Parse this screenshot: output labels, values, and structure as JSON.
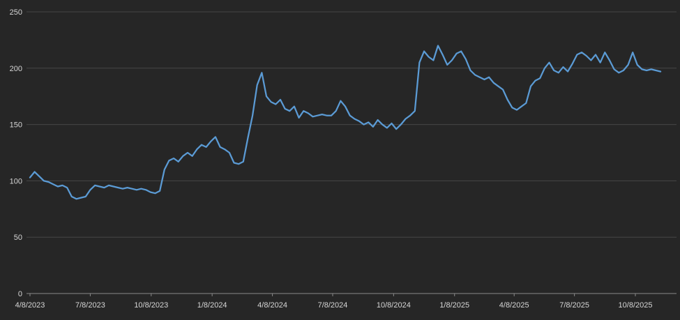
{
  "chart_data": {
    "type": "line",
    "title": "",
    "xlabel": "",
    "ylabel": "",
    "legend": "none",
    "grid": "horizontal",
    "ylim": [
      0,
      250
    ],
    "y_ticks": [
      0,
      50,
      100,
      150,
      200,
      250
    ],
    "x_tick_labels": [
      "4/8/2023",
      "7/8/2023",
      "10/8/2023",
      "1/8/2024",
      "4/8/2024",
      "7/8/2024",
      "10/8/2024",
      "1/8/2025",
      "4/8/2025",
      "7/8/2025",
      "10/8/2025"
    ],
    "colors": {
      "background": "#262626",
      "gridline": "#474747",
      "axis_line": "#8a8a8a",
      "tick_text": "#d6d6d6",
      "line": "#5b9bd5"
    },
    "series": [
      {
        "name": "price",
        "color": "#5b9bd5",
        "start_date": "2023-04-08",
        "interval_days": 7,
        "values": [
          103,
          108,
          104,
          100,
          99,
          97,
          95,
          96,
          94,
          86,
          84,
          85,
          86,
          92,
          96,
          95,
          94,
          96,
          95,
          94,
          93,
          94,
          93,
          92,
          93,
          92,
          90,
          89,
          91,
          110,
          118,
          120,
          117,
          122,
          125,
          122,
          128,
          132,
          130,
          135,
          139,
          130,
          128,
          125,
          116,
          115,
          117,
          138,
          158,
          185,
          196,
          175,
          170,
          168,
          172,
          164,
          162,
          166,
          156,
          162,
          160,
          157,
          158,
          159,
          158,
          158,
          162,
          171,
          166,
          158,
          155,
          153,
          150,
          152,
          148,
          154,
          150,
          147,
          151,
          146,
          150,
          155,
          158,
          162,
          205,
          215,
          210,
          207,
          220,
          212,
          203,
          207,
          213,
          215,
          208,
          198,
          194,
          192,
          190,
          192,
          187,
          184,
          181,
          172,
          165,
          163,
          166,
          169,
          184,
          189,
          191,
          200,
          205,
          198,
          196,
          201,
          197,
          204,
          212,
          214,
          211,
          207,
          212,
          205,
          214,
          207,
          199,
          196,
          198,
          203,
          214,
          203,
          199,
          198,
          199,
          198,
          197
        ]
      }
    ]
  }
}
